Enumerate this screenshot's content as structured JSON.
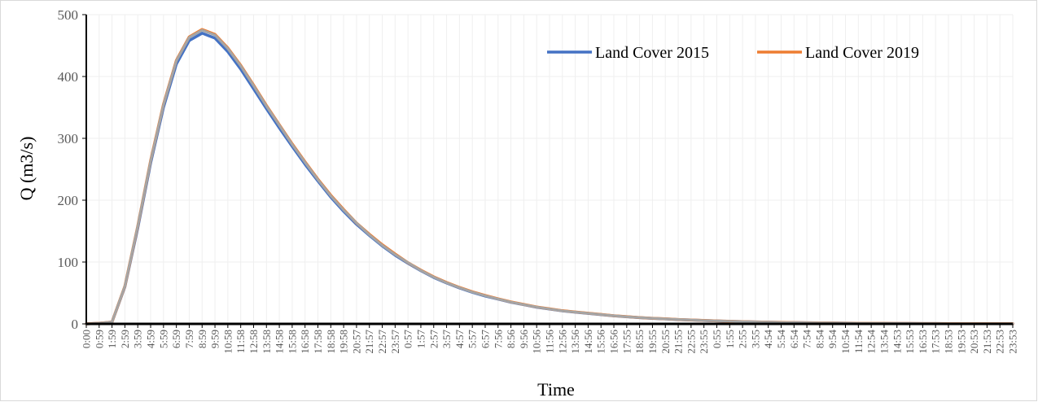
{
  "chart_data": {
    "type": "line",
    "xlabel": "Time",
    "ylabel": "Q (m3/s)",
    "ylim": [
      0,
      500
    ],
    "y_ticks": [
      0,
      100,
      200,
      300,
      400,
      500
    ],
    "grid": true,
    "legend_position": "top-right",
    "x_tick_labels": [
      "0:00",
      "0:59",
      "1:59",
      "2:59",
      "3:59",
      "4:59",
      "5:59",
      "6:59",
      "7:59",
      "8:59",
      "9:59",
      "10:58",
      "11:58",
      "12:58",
      "13:58",
      "14:58",
      "15:58",
      "16:58",
      "17:58",
      "18:58",
      "19:58",
      "20:57",
      "21:57",
      "22:57",
      "23:57",
      "0:57",
      "1:57",
      "2:57",
      "3:57",
      "4:57",
      "5:57",
      "6:57",
      "7:56",
      "8:56",
      "9:56",
      "10:56",
      "11:56",
      "12:56",
      "13:56",
      "14:56",
      "15:56",
      "16:56",
      "17:55",
      "18:55",
      "19:55",
      "20:55",
      "21:55",
      "22:55",
      "23:55",
      "0:55",
      "1:55",
      "2:55",
      "3:55",
      "4:54",
      "5:54",
      "6:54",
      "7:54",
      "8:54",
      "9:54",
      "10:54",
      "11:54",
      "12:54",
      "13:54",
      "14:53",
      "15:53",
      "16:53",
      "17:53",
      "18:53",
      "19:53",
      "20:53",
      "21:53",
      "22:53",
      "23:53"
    ],
    "series": [
      {
        "name": "Land Cover 2015",
        "color": "#4472c4",
        "values": [
          0,
          1,
          3,
          60,
          155,
          260,
          350,
          420,
          458,
          470,
          462,
          440,
          412,
          380,
          348,
          317,
          287,
          258,
          231,
          205,
          182,
          161,
          143,
          126,
          111,
          98,
          86,
          75,
          66,
          58,
          51,
          45,
          40,
          35,
          31,
          27,
          24,
          21,
          19,
          17,
          15,
          13,
          11.5,
          10,
          9,
          8,
          7,
          6.2,
          5.4,
          4.7,
          4.1,
          3.6,
          3.1,
          2.7,
          2.4,
          2.1,
          1.8,
          1.6,
          1.4,
          1.2,
          1.05,
          0.92,
          0.8,
          0.7,
          0.62,
          0.54,
          0.47,
          0.41,
          0.36,
          0.32,
          0.28,
          0.24,
          0.21
        ]
      },
      {
        "name": "Land Cover 2019",
        "color": "#ed7d31",
        "values": [
          0,
          1,
          3,
          61,
          158,
          264,
          355,
          426,
          464,
          476,
          468,
          446,
          418,
          386,
          353,
          322,
          291,
          262,
          234,
          208,
          185,
          163,
          145,
          128,
          113,
          99,
          87,
          76,
          67,
          59,
          52,
          46,
          40.5,
          35.5,
          31.4,
          27.4,
          24.3,
          21.3,
          19.2,
          17.2,
          15.2,
          13.2,
          11.7,
          10.2,
          9.1,
          8.1,
          7.1,
          6.3,
          5.5,
          4.8,
          4.2,
          3.7,
          3.2,
          2.8,
          2.45,
          2.15,
          1.85,
          1.65,
          1.45,
          1.25,
          1.08,
          0.95,
          0.82,
          0.72,
          0.64,
          0.56,
          0.49,
          0.43,
          0.37,
          0.33,
          0.29,
          0.25,
          0.22
        ]
      },
      {
        "values": [
          0,
          1,
          3,
          61,
          158,
          263,
          354,
          425,
          463,
          475,
          467,
          445,
          417,
          385,
          352,
          321,
          290,
          261,
          233,
          207,
          184,
          163,
          144,
          127,
          112,
          99,
          86.5,
          75.5,
          66.5,
          58.5,
          51.5,
          45.5,
          40.2,
          35.2,
          31.2,
          27.2,
          24.1,
          21.1,
          19.1,
          17.1,
          15.1,
          13.1,
          11.6,
          10.1,
          9.05,
          8.05,
          7.05,
          6.25,
          5.45,
          4.75,
          4.15,
          3.65,
          3.15,
          2.75,
          2.42,
          2.12,
          1.82,
          1.62,
          1.42,
          1.22,
          1.06,
          0.93,
          0.81,
          0.71,
          0.63,
          0.55,
          0.48,
          0.42,
          0.36,
          0.32,
          0.28,
          0.24,
          0.21
        ],
        "color": "#a5a5a5"
      }
    ]
  }
}
